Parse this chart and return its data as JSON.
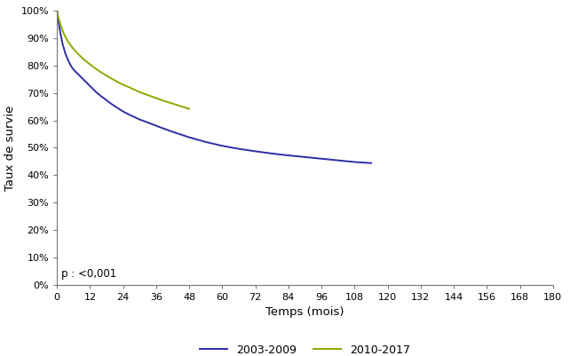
{
  "title": "",
  "xlabel": "Temps (mois)",
  "ylabel": "Taux de survie",
  "xlim": [
    0,
    180
  ],
  "ylim": [
    0,
    1.0
  ],
  "xticks": [
    0,
    12,
    24,
    36,
    48,
    60,
    72,
    84,
    96,
    108,
    120,
    132,
    144,
    156,
    168,
    180
  ],
  "yticks": [
    0.0,
    0.1,
    0.2,
    0.3,
    0.4,
    0.5,
    0.6,
    0.7,
    0.8,
    0.9,
    1.0
  ],
  "p_value_text": "p : <0,001",
  "color_2003": "#2e2ea8",
  "color_2010": "#8aaa00",
  "label_2003": "2003-2009",
  "label_2010": "2010-2017",
  "curve_2003_x": [
    0,
    0.3,
    0.5,
    1,
    1.5,
    2,
    3,
    4,
    5,
    6,
    7,
    8,
    9,
    10,
    11,
    12,
    14,
    16,
    18,
    20,
    22,
    24,
    27,
    30,
    33,
    36,
    39,
    42,
    45,
    48,
    54,
    60,
    66,
    72,
    78,
    84,
    90,
    96,
    102,
    108,
    114
  ],
  "curve_2003_y": [
    1.0,
    0.98,
    0.965,
    0.93,
    0.905,
    0.88,
    0.845,
    0.82,
    0.8,
    0.785,
    0.775,
    0.765,
    0.755,
    0.745,
    0.735,
    0.725,
    0.705,
    0.688,
    0.673,
    0.658,
    0.645,
    0.632,
    0.617,
    0.603,
    0.592,
    0.58,
    0.569,
    0.558,
    0.548,
    0.538,
    0.521,
    0.507,
    0.496,
    0.487,
    0.479,
    0.472,
    0.466,
    0.46,
    0.454,
    0.448,
    0.444
  ],
  "curve_2010_x": [
    0,
    0.3,
    0.5,
    1,
    1.5,
    2,
    3,
    4,
    5,
    6,
    7,
    8,
    9,
    10,
    11,
    12,
    14,
    16,
    18,
    20,
    22,
    24,
    27,
    30,
    33,
    36,
    39,
    42,
    45,
    48
  ],
  "curve_2010_y": [
    1.0,
    0.985,
    0.975,
    0.958,
    0.942,
    0.928,
    0.905,
    0.887,
    0.873,
    0.86,
    0.849,
    0.839,
    0.829,
    0.82,
    0.812,
    0.804,
    0.789,
    0.775,
    0.763,
    0.751,
    0.74,
    0.73,
    0.717,
    0.703,
    0.692,
    0.681,
    0.67,
    0.661,
    0.651,
    0.642
  ]
}
